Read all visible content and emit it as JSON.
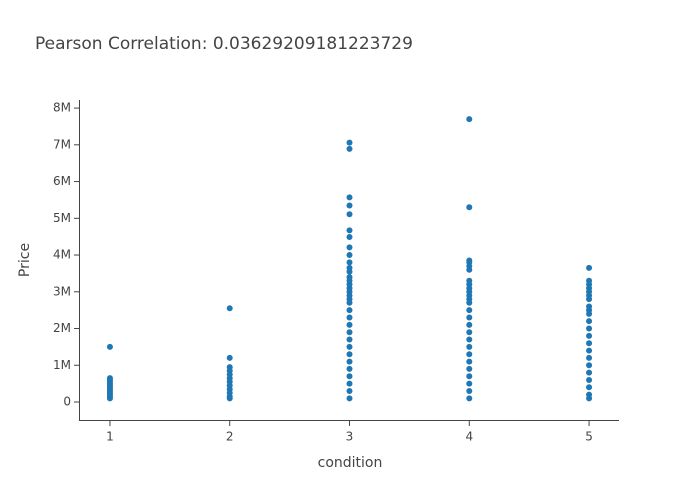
{
  "chart_data": {
    "type": "scatter",
    "title": "Pearson Correlation: 0.03629209181223729",
    "x_label": "condition",
    "y_label": "Price",
    "color": "#1f77b4",
    "x": [
      1,
      1,
      1,
      1,
      1,
      1,
      1,
      1,
      1,
      1,
      1,
      1,
      1,
      2,
      2,
      2,
      2,
      2,
      2,
      2,
      2,
      2,
      2,
      2,
      2,
      3,
      3,
      3,
      3,
      3,
      3,
      3,
      3,
      3,
      3,
      3,
      3,
      3,
      3,
      3,
      3,
      3,
      3,
      3,
      3,
      3,
      3,
      3,
      3,
      3,
      3,
      3,
      3,
      3,
      3,
      3,
      3,
      3,
      4,
      4,
      4,
      4,
      4,
      4,
      4,
      4,
      4,
      4,
      4,
      4,
      4,
      4,
      4,
      4,
      4,
      4,
      4,
      4,
      4,
      4,
      4,
      4,
      4,
      4,
      5,
      5,
      5,
      5,
      5,
      5,
      5,
      5,
      5,
      5,
      5,
      5,
      5,
      5,
      5,
      5,
      5,
      5,
      5,
      5,
      5,
      5
    ],
    "values": [
      1500000,
      650000,
      600000,
      550000,
      500000,
      450000,
      400000,
      350000,
      300000,
      250000,
      200000,
      150000,
      100000,
      2550000,
      1200000,
      950000,
      850000,
      750000,
      650000,
      550000,
      450000,
      350000,
      250000,
      150000,
      100000,
      7060000,
      6890000,
      5570000,
      5350000,
      5110000,
      4670000,
      4490000,
      4210000,
      4000000,
      3800000,
      3650000,
      3550000,
      3400000,
      3300000,
      3200000,
      3100000,
      3000000,
      2900000,
      2800000,
      2700000,
      2500000,
      2300000,
      2100000,
      1900000,
      1700000,
      1500000,
      1300000,
      1100000,
      900000,
      700000,
      500000,
      300000,
      100000,
      7700000,
      5300000,
      3850000,
      3800000,
      3700000,
      3600000,
      3300000,
      3200000,
      3100000,
      3000000,
      2900000,
      2800000,
      2700000,
      2500000,
      2300000,
      2100000,
      1900000,
      1700000,
      1500000,
      1300000,
      1100000,
      900000,
      700000,
      500000,
      300000,
      100000,
      3650000,
      3300000,
      3200000,
      3100000,
      3000000,
      2900000,
      2800000,
      2600000,
      2500000,
      2400000,
      2200000,
      2000000,
      1800000,
      1600000,
      1400000,
      1200000,
      1000000,
      800000,
      600000,
      400000,
      200000,
      100000
    ],
    "xlim": [
      0.75,
      5.25
    ],
    "xticks": [
      1,
      2,
      3,
      4,
      5
    ],
    "ylim": [
      -490000,
      8220000
    ],
    "yticks": [
      0,
      {
        "value": 1000000,
        "label": "1M"
      },
      {
        "value": 2000000,
        "label": "2M"
      },
      {
        "value": 3000000,
        "label": "3M"
      },
      {
        "value": 4000000,
        "label": "4M"
      },
      {
        "value": 5000000,
        "label": "5M"
      },
      {
        "value": 6000000,
        "label": "6M"
      },
      {
        "value": 7000000,
        "label": "7M"
      },
      {
        "value": 8000000,
        "label": "8M"
      }
    ]
  }
}
